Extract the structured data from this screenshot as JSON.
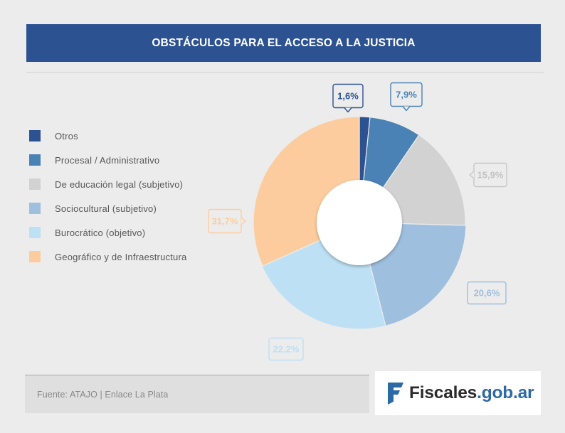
{
  "title": "OBSTÁCULOS PARA EL ACCESO A LA JUSTICIA",
  "footer": {
    "source": "Fuente: ATAJO | Enlace La Plata"
  },
  "brand": {
    "name": "Fiscales",
    "domain": ".gob.ar",
    "logo_icon": "fiscales-f-logo-icon"
  },
  "colors": {
    "header": "#2d5292",
    "brand_accent": "#2b6aa5"
  },
  "chart_data": {
    "type": "pie",
    "variant": "donut",
    "title": "OBSTÁCULOS PARA EL ACCESO A LA JUSTICIA",
    "legend_position": "left",
    "slices": [
      {
        "label": "Otros",
        "value": 1.6,
        "value_label": "1,6%",
        "color": "#2d5292"
      },
      {
        "label": "Procesal / Administrativo",
        "value": 7.9,
        "value_label": "7,9%",
        "color": "#4a82b5"
      },
      {
        "label": "De educación legal (subjetivo)",
        "value": 15.9,
        "value_label": "15,9%",
        "color": "#d2d2d2"
      },
      {
        "label": "Sociocultural (subjetivo)",
        "value": 20.6,
        "value_label": "20,6%",
        "color": "#9ebfde"
      },
      {
        "label": "Burocrático (objetivo)",
        "value": 22.2,
        "value_label": "22,2%",
        "color": "#bde0f4"
      },
      {
        "label": "Geográfico y de Infraestructura",
        "value": 31.7,
        "value_label": "31,7%",
        "color": "#fdcc9e"
      }
    ]
  }
}
